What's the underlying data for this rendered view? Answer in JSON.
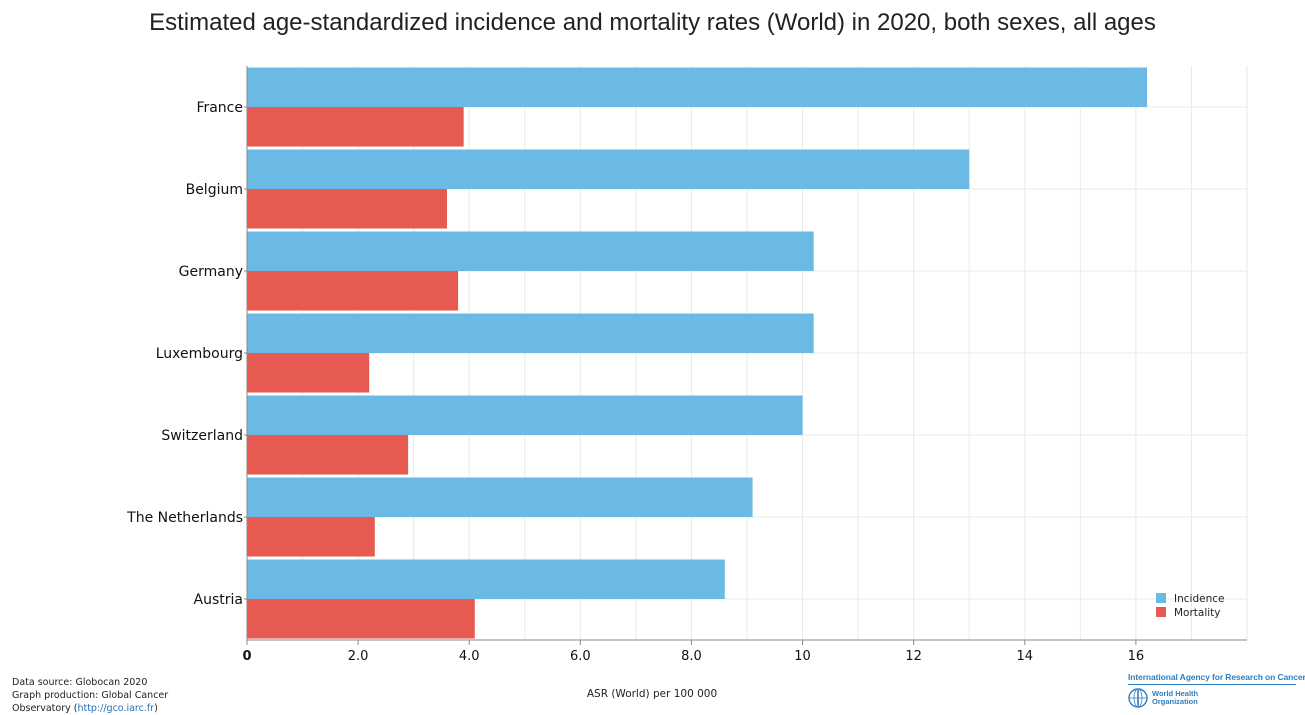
{
  "chart_data": {
    "type": "bar",
    "orientation": "horizontal",
    "title": "Estimated age-standardized incidence and mortality rates (World) in 2020, both sexes, all ages",
    "categories": [
      "France",
      "Belgium",
      "Germany",
      "Luxembourg",
      "Switzerland",
      "The Netherlands",
      "Austria"
    ],
    "series": [
      {
        "name": "Incidence",
        "color": "#6bb9e5",
        "values": [
          16.2,
          13.0,
          10.2,
          10.2,
          10.0,
          9.1,
          8.6
        ]
      },
      {
        "name": "Mortality",
        "color": "#e65a52",
        "values": [
          3.9,
          3.6,
          3.8,
          2.2,
          2.9,
          2.3,
          4.1
        ]
      }
    ],
    "xlim": [
      0,
      18
    ],
    "xticks": [
      "0",
      "2.0",
      "4.0",
      "6.0",
      "8.0",
      "10",
      "12",
      "14",
      "16"
    ],
    "xlabel": "ASR (World) per 100 000",
    "ylabel": "",
    "grid": true,
    "legend_position": "bottom-right"
  },
  "footer": {
    "source_line1": "Data source: Globocan 2020",
    "source_line2": "Graph production: Global Cancer",
    "source_line3_prefix": "Observatory (",
    "source_link": "http://gco.iarc.fr",
    "source_line3_suffix": ")"
  },
  "logos": {
    "iarc": "International Agency for Research on Cancer",
    "who_line1": "World Health",
    "who_line2": "Organization",
    "who_icon": "who-emblem-icon"
  }
}
